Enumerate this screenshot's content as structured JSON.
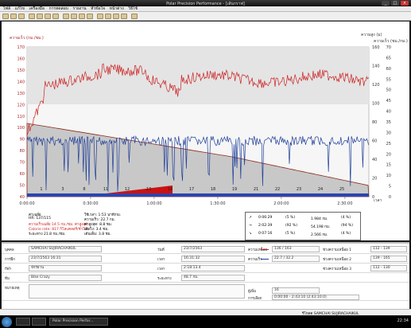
{
  "window": {
    "title": "Polar Precision Performance - [เส้นกราฟ]"
  },
  "menu": [
    "ไฟล์",
    "แก้ไข",
    "เครื่องมือ",
    "การทดสอบ",
    "รายงาน",
    "หัวข้อใจ",
    "หน้าต่าง",
    "วิธีใช้"
  ],
  "chart": {
    "left_axis_title": "ความเร็ว (กม./ชม.)",
    "right_axis_title_1": "ความสูง (ม)",
    "right_axis_title_2": "ความเร็ว (ชม./กม.)",
    "left_ticks": [
      "170",
      "160",
      "150",
      "140",
      "130",
      "120",
      "110",
      "100",
      "90",
      "80",
      "70",
      "60",
      "50",
      "40"
    ],
    "right_ticks_1": [
      "160",
      "140",
      "120",
      "100",
      "80",
      "60",
      "40",
      "20",
      "0"
    ],
    "right_ticks_2": [
      "70",
      "65",
      "60",
      "55",
      "50",
      "45",
      "40",
      "35",
      "30",
      "25",
      "20",
      "15",
      "10",
      "5",
      "0"
    ],
    "time_ticks": [
      "0:00:00",
      "0:30:00",
      "1:00:00",
      "1:30:00",
      "2:00:00",
      "2:30:00"
    ],
    "time_unit": "เวลา",
    "lap_labels": [
      "1",
      "3",
      "8",
      "11",
      "12",
      "13",
      "16",
      "17",
      "18",
      "19",
      "21",
      "22",
      "23",
      "24",
      "25"
    ]
  },
  "summary": {
    "line1": "ค่าเฉลี่ย",
    "line2": "HR: 137/115",
    "line3": "ความเร็วเฉลี่ย 14.5 กม./ชม. ค่าสูงสุด",
    "line4": "Calorie rate: 817 กิโลแคลอรี่/ชั่วโมง",
    "line5": "ระยะทาง 21.8 กม./ชม.",
    "line6": "ใช้เวลา: 1:53 นาที/กม.",
    "line7": "ความเร็ว: 22.7 กม.",
    "line8": "ค่าสูงสุด: 8.8 ชม.",
    "line9": "เสียวิ่ง: 3.4 ชม.",
    "line10": "เต้นเต็ม: 3.8 ชม."
  },
  "stats": [
    {
      "arrow": "↗",
      "time": "0:06:29",
      "pct": "(5 %)",
      "value": "1.984 กม.",
      "pct2": "(4 %)"
    },
    {
      "arrow": "→",
      "time": "2:02:39",
      "pct": "(92 %)",
      "value": "54.198 กม.",
      "pct2": "(94 %)"
    },
    {
      "arrow": "↘",
      "time": "0:07:16",
      "pct": "(5 %)",
      "value": "2.566 กม.",
      "pct2": "(4 %)"
    }
  ],
  "panel": {
    "row1": {
      "label1": "บุคคล",
      "value1": "SAMCHAI SUJIRACHAIKUL",
      "label2": "วันที่",
      "value2": "23/7/2563",
      "label3": "ความเหนื่อย",
      "value3": "136 / 163",
      "label4": "ช่วงความเหนื่อย 1",
      "value4": "112 - 139"
    },
    "row2": {
      "label1": "การฝึก",
      "value1": "23/7/2563 16:31",
      "label2": "เวลา",
      "value2": "16:31:32",
      "label3": "ความเร็ว",
      "value3": "22.7 / 32.2",
      "label4": "ช่วงความเหนื่อย 2",
      "value4": "139 - 165"
    },
    "row3": {
      "label1": "กีฬา",
      "value1": "จักรยาน",
      "label2": "เวลา",
      "value2": "2:18:13.4",
      "label3": "",
      "value3": "",
      "label4": "ช่วงความเหนื่อย 3",
      "value4": "112 - 130"
    },
    "row4": {
      "label1": "ทีม",
      "value1": "Bike Crazy",
      "label2": "ระยะทาง",
      "value2": "48.7 กม.",
      "label3": "",
      "value3": "",
      "label4": "",
      "value4": ""
    },
    "row5": {
      "label1": "หมายเหตุ",
      "value1": "",
      "label2": "",
      "value2": "",
      "label3": "ผู้เพิ่ม",
      "value3": "16",
      "label4": "",
      "value4": ""
    },
    "row6": {
      "label1": "",
      "value1": "",
      "label2": "",
      "value2": "",
      "label3": "การเลือก",
      "value3": "0:00:00 - 2:43:10 (2:43:10.0)",
      "label4": "",
      "value4": ""
    }
  },
  "statusbar_text": "รีโหลด SAMCHAI SUJIRACHAIKUL",
  "taskbar": {
    "task": "Polar Precision Perfor...",
    "clock": "22:34"
  },
  "colors": {
    "hr": "#cc2222",
    "speed": "#1f3f99",
    "altitude_fill": "#c8c8c8",
    "lap_bar": "#cc1111"
  }
}
